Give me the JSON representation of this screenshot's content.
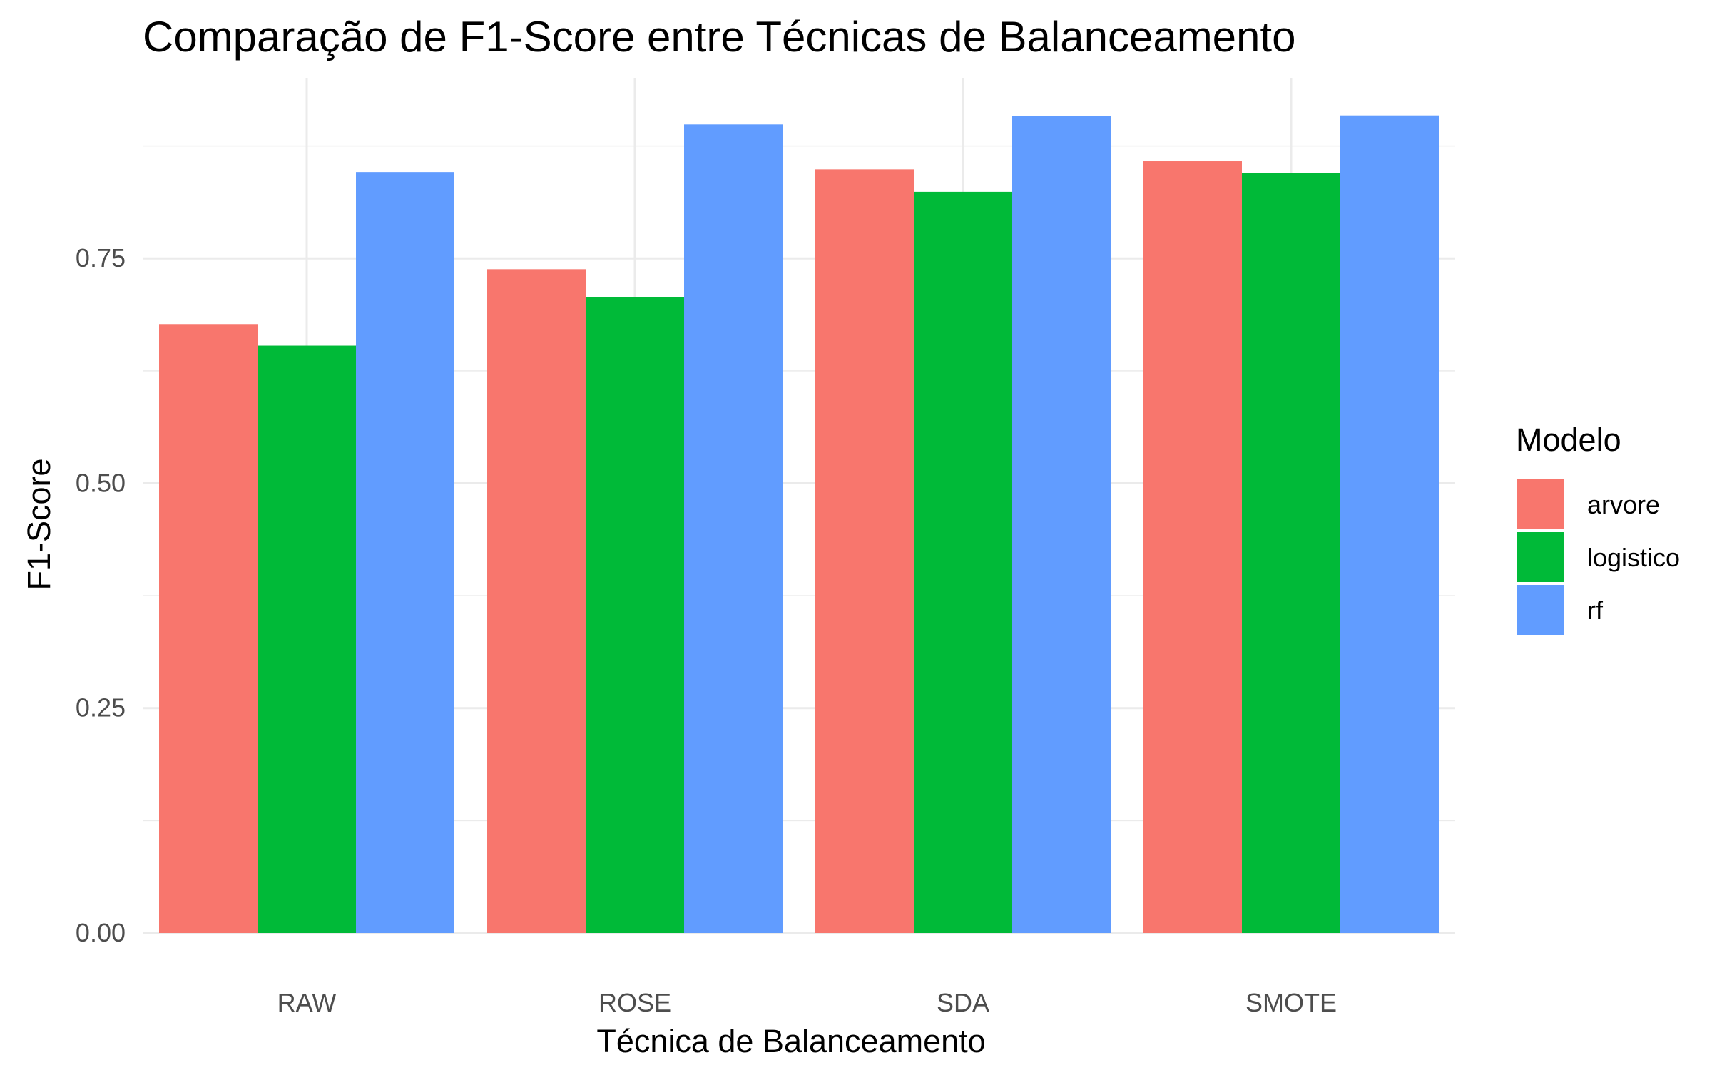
{
  "chart_data": {
    "type": "bar",
    "title": "Comparação de F1-Score entre Técnicas de Balanceamento",
    "xlabel": "Técnica de Balanceamento",
    "ylabel": "F1-Score",
    "categories": [
      "RAW",
      "ROSE",
      "SDA",
      "SMOTE"
    ],
    "series": [
      {
        "name": "arvore",
        "color": "#F8766D",
        "values": [
          0.677,
          0.738,
          0.849,
          0.858
        ]
      },
      {
        "name": "logistico",
        "color": "#00BA38",
        "values": [
          0.653,
          0.707,
          0.824,
          0.845
        ]
      },
      {
        "name": "rf",
        "color": "#619CFF",
        "values": [
          0.846,
          0.899,
          0.908,
          0.909
        ]
      }
    ],
    "ylim": [
      0,
      0.95
    ],
    "yticks": [
      "0.00",
      "0.25",
      "0.50",
      "0.75"
    ],
    "grid": true,
    "legend": {
      "title": "Modelo",
      "position": "right"
    }
  }
}
